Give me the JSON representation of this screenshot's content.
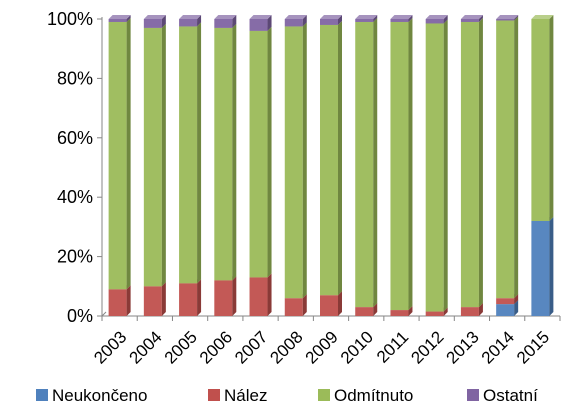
{
  "chart_data": {
    "type": "bar",
    "stacked": true,
    "percent": true,
    "style": "3d-stacked-column",
    "categories": [
      "2003",
      "2004",
      "2005",
      "2006",
      "2007",
      "2008",
      "2009",
      "2010",
      "2011",
      "2012",
      "2013",
      "2014",
      "2015"
    ],
    "series": [
      {
        "name": "Neukončeno",
        "color": "#4F81BD",
        "values": [
          0,
          0,
          0,
          0,
          0,
          0,
          0,
          0,
          0,
          0,
          0,
          4,
          32
        ]
      },
      {
        "name": "Nález",
        "color": "#C0504D",
        "values": [
          9,
          10,
          11,
          12,
          13,
          6,
          7,
          3,
          2,
          1.5,
          3,
          2,
          0
        ]
      },
      {
        "name": "Odmítnuto",
        "color": "#9BBB59",
        "values": [
          90,
          87,
          86.5,
          85,
          83,
          91.5,
          91,
          96,
          97,
          97,
          96,
          93.5,
          68
        ]
      },
      {
        "name": "Ostatní",
        "color": "#8064A2",
        "values": [
          1,
          3,
          2.5,
          3,
          4,
          2.5,
          2,
          1,
          1,
          1.5,
          1,
          0.5,
          0
        ]
      }
    ],
    "yticks": [
      "0%",
      "20%",
      "40%",
      "60%",
      "80%",
      "100%"
    ],
    "ylim": [
      0,
      100
    ],
    "grid": false,
    "legend_position": "bottom"
  }
}
